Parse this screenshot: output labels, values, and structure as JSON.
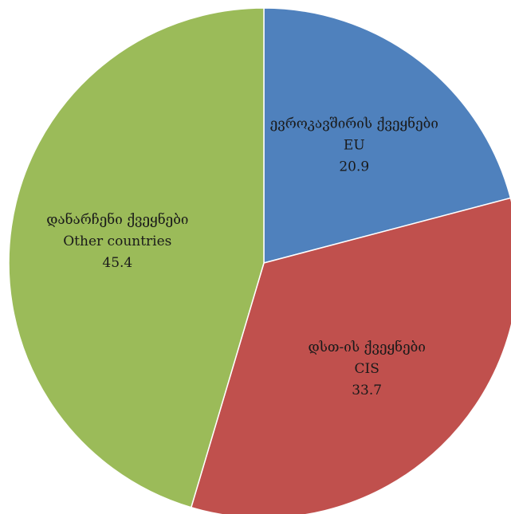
{
  "chart_data": {
    "type": "pie",
    "title": "",
    "legend": "none",
    "start_angle_deg": 0,
    "direction": "clockwise",
    "slices": [
      {
        "label_ka": "ევროკავშირის ქვეყნები",
        "label_en": "EU",
        "value": 20.9,
        "value_label": "20.9",
        "color": "#4F81BD"
      },
      {
        "label_ka": "დსთ-ის ქვეყნები",
        "label_en": "CIS",
        "value": 33.7,
        "value_label": "33.7",
        "color": "#C0504D"
      },
      {
        "label_ka": "დანარჩენი ქვეყნები",
        "label_en": "Other countries",
        "value": 45.4,
        "value_label": "45.4",
        "color": "#9BBB59"
      }
    ]
  }
}
